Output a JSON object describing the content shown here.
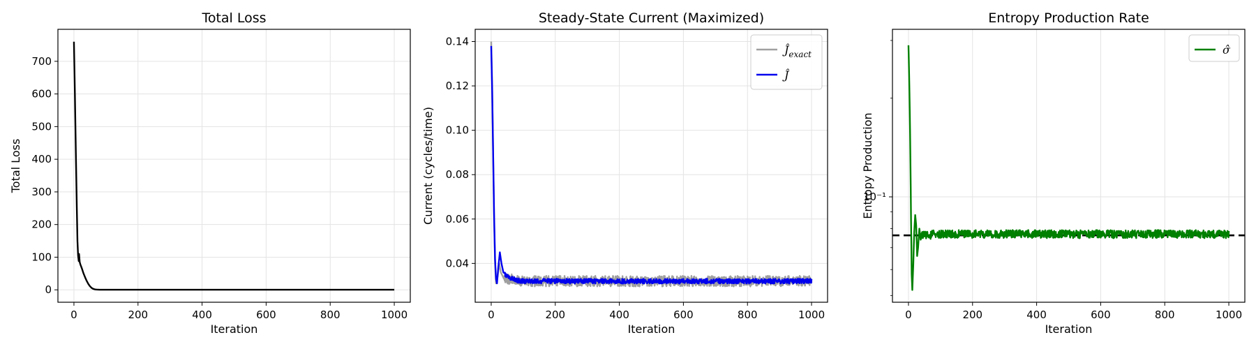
{
  "chart_data": [
    {
      "type": "line",
      "title": "Total Loss",
      "xlabel": "Iteration",
      "ylabel": "Total Loss",
      "xlim": [
        -50,
        1050
      ],
      "ylim": [
        -38,
        798
      ],
      "xticks": [
        0,
        200,
        400,
        600,
        800,
        1000
      ],
      "yticks": [
        0,
        100,
        200,
        300,
        400,
        500,
        600,
        700
      ],
      "grid": true,
      "legend": null,
      "series": [
        {
          "color": "#000000",
          "points": [
            [
              0,
              760
            ],
            [
              3,
              600
            ],
            [
              6,
              420
            ],
            [
              9,
              250
            ],
            [
              11,
              150
            ],
            [
              13,
              105
            ],
            [
              15,
              88
            ],
            [
              16,
              110
            ],
            [
              18,
              85
            ],
            [
              20,
              78
            ],
            [
              25,
              65
            ],
            [
              30,
              50
            ],
            [
              35,
              38
            ],
            [
              40,
              27
            ],
            [
              45,
              18
            ],
            [
              50,
              11
            ],
            [
              55,
              6
            ],
            [
              60,
              3
            ],
            [
              65,
              1.5
            ],
            [
              70,
              0.8
            ],
            [
              80,
              0.4
            ],
            [
              100,
              0.3
            ],
            [
              200,
              0.3
            ],
            [
              300,
              0.3
            ],
            [
              400,
              0.3
            ],
            [
              500,
              0.3
            ],
            [
              600,
              0.3
            ],
            [
              700,
              0.3
            ],
            [
              800,
              0.3
            ],
            [
              900,
              0.3
            ],
            [
              1000,
              0.3
            ]
          ]
        }
      ]
    },
    {
      "type": "line",
      "title": "Steady-State Current (Maximized)",
      "xlabel": "Iteration",
      "ylabel": "Current (cycles/time)",
      "xlim": [
        -50,
        1050
      ],
      "ylim": [
        0.0225,
        0.1455
      ],
      "xticks": [
        0,
        200,
        400,
        600,
        800,
        1000
      ],
      "yticks": [
        0.04,
        0.06,
        0.08,
        0.1,
        0.12,
        0.14
      ],
      "grid": true,
      "legend": "top-right",
      "series": [
        {
          "name": "Ĵexact",
          "color": "#a0a0a0",
          "noise": 0.0024,
          "points": [
            [
              0,
              0.14
            ],
            [
              3,
              0.12
            ],
            [
              6,
              0.09
            ],
            [
              9,
              0.06
            ],
            [
              12,
              0.04
            ],
            [
              15,
              0.031
            ],
            [
              20,
              0.034
            ],
            [
              25,
              0.04
            ],
            [
              30,
              0.036
            ],
            [
              40,
              0.033
            ],
            [
              60,
              0.033
            ],
            [
              80,
              0.032
            ],
            [
              100,
              0.032
            ],
            [
              1000,
              0.032
            ]
          ]
        },
        {
          "name": "Ĵ",
          "color": "#0000ee",
          "noise": 0.0011,
          "points": [
            [
              0,
              0.138
            ],
            [
              3,
              0.118
            ],
            [
              6,
              0.09
            ],
            [
              9,
              0.062
            ],
            [
              12,
              0.042
            ],
            [
              15,
              0.033
            ],
            [
              18,
              0.031
            ],
            [
              22,
              0.038
            ],
            [
              27,
              0.045
            ],
            [
              32,
              0.04
            ],
            [
              38,
              0.036
            ],
            [
              45,
              0.035
            ],
            [
              55,
              0.034
            ],
            [
              70,
              0.033
            ],
            [
              90,
              0.032
            ],
            [
              1000,
              0.032
            ]
          ]
        }
      ]
    },
    {
      "type": "line",
      "title": "Entropy Production Rate",
      "xlabel": "Iteration",
      "ylabel": "Entropy Production",
      "xscale": "linear",
      "yscale": "log",
      "xlim": [
        -50,
        1050
      ],
      "ylim": [
        0.0477,
        0.3244
      ],
      "xticks": [
        0,
        200,
        400,
        600,
        800,
        1000
      ],
      "yticks": [
        0.1
      ],
      "ytick_labels": [
        "10⁻¹"
      ],
      "grid": true,
      "legend": "top-right",
      "reference_line": {
        "y": 0.0763,
        "style": "dashed",
        "color": "#000000"
      },
      "series": [
        {
          "name": "σ̂",
          "color": "#008000",
          "noise": 0.0022,
          "points": [
            [
              0,
              0.29
            ],
            [
              3,
              0.21
            ],
            [
              6,
              0.13
            ],
            [
              8,
              0.085
            ],
            [
              10,
              0.058
            ],
            [
              12,
              0.052
            ],
            [
              15,
              0.062
            ],
            [
              18,
              0.078
            ],
            [
              21,
              0.088
            ],
            [
              24,
              0.082
            ],
            [
              27,
              0.066
            ],
            [
              30,
              0.07
            ],
            [
              34,
              0.08
            ],
            [
              38,
              0.074
            ],
            [
              45,
              0.077
            ],
            [
              60,
              0.076
            ],
            [
              80,
              0.077
            ],
            [
              1000,
              0.077
            ]
          ]
        }
      ]
    }
  ]
}
